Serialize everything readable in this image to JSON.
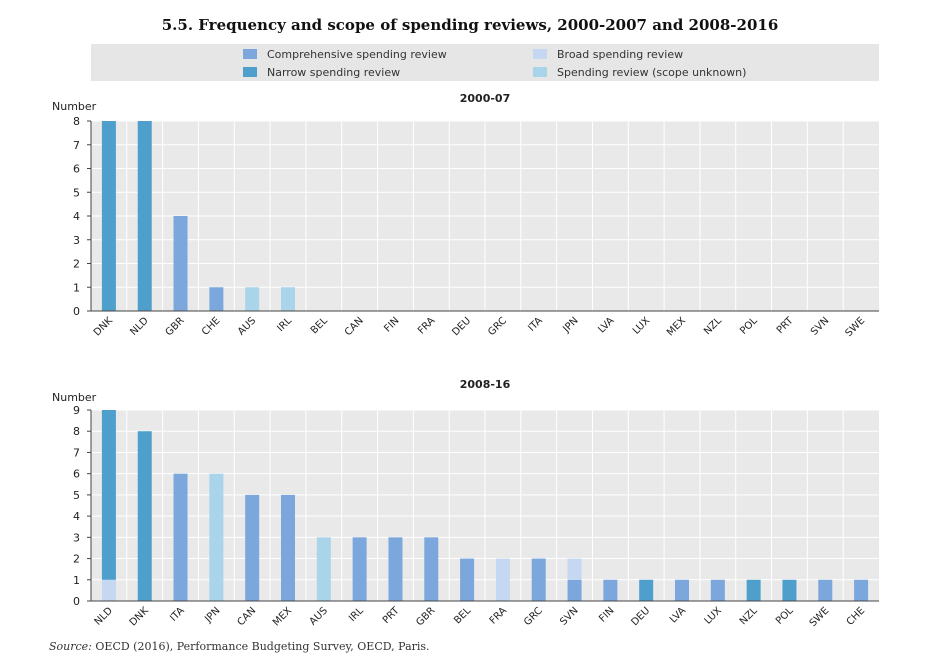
{
  "title": "5.5. Frequency and scope of spending reviews, 2000-2007 and 2008-2016",
  "source_label": "Source:",
  "source_text": "OECD (2016), Performance Budgeting Survey, OECD, Paris.",
  "colors": {
    "comprehensive": "#7ba7dc",
    "broad": "#c5d7f1",
    "narrow": "#4f9fcd",
    "unknown": "#a9d4ea"
  },
  "legend": [
    {
      "key": "comprehensive",
      "label": "Comprehensive spending review"
    },
    {
      "key": "broad",
      "label": "Broad spending review"
    },
    {
      "key": "narrow",
      "label": "Narrow spending review"
    },
    {
      "key": "unknown",
      "label": "Spending review (scope unknown)"
    }
  ],
  "chart_data": [
    {
      "type": "bar",
      "stacked": true,
      "title": "2000-07",
      "ylabel": "Number",
      "ylim": [
        0,
        8
      ],
      "yticks": [
        0,
        1,
        2,
        3,
        4,
        5,
        6,
        7,
        8
      ],
      "grid": true,
      "categories": [
        "DNK",
        "NLD",
        "GBR",
        "CHE",
        "AUS",
        "IRL",
        "BEL",
        "CAN",
        "FIN",
        "FRA",
        "DEU",
        "GRC",
        "ITA",
        "JPN",
        "LVA",
        "LUX",
        "MEX",
        "NZL",
        "POL",
        "PRT",
        "SVN",
        "SWE"
      ],
      "series": [
        {
          "key": "comprehensive",
          "name": "Comprehensive spending review",
          "values": [
            0,
            0,
            4,
            1,
            0,
            0,
            0,
            0,
            0,
            0,
            0,
            0,
            0,
            0,
            0,
            0,
            0,
            0,
            0,
            0,
            0,
            0
          ]
        },
        {
          "key": "broad",
          "name": "Broad spending review",
          "values": [
            0,
            0,
            0,
            0,
            0,
            0,
            0,
            0,
            0,
            0,
            0,
            0,
            0,
            0,
            0,
            0,
            0,
            0,
            0,
            0,
            0,
            0
          ]
        },
        {
          "key": "narrow",
          "name": "Narrow spending review",
          "values": [
            8,
            8,
            0,
            0,
            0,
            0,
            0,
            0,
            0,
            0,
            0,
            0,
            0,
            0,
            0,
            0,
            0,
            0,
            0,
            0,
            0,
            0
          ]
        },
        {
          "key": "unknown",
          "name": "Spending review (scope unknown)",
          "values": [
            0,
            0,
            0,
            0,
            1,
            1,
            0,
            0,
            0,
            0,
            0,
            0,
            0,
            0,
            0,
            0,
            0,
            0,
            0,
            0,
            0,
            0
          ]
        }
      ]
    },
    {
      "type": "bar",
      "stacked": true,
      "title": "2008-16",
      "ylabel": "Number",
      "ylim": [
        0,
        9
      ],
      "yticks": [
        0,
        1,
        2,
        3,
        4,
        5,
        6,
        7,
        8,
        9
      ],
      "grid": true,
      "categories": [
        "NLD",
        "DNK",
        "ITA",
        "JPN",
        "CAN",
        "MEX",
        "AUS",
        "IRL",
        "PRT",
        "GBR",
        "BEL",
        "FRA",
        "GRC",
        "SVN",
        "FIN",
        "DEU",
        "LVA",
        "LUX",
        "NZL",
        "POL",
        "SWE",
        "CHE"
      ],
      "series": [
        {
          "key": "comprehensive",
          "name": "Comprehensive spending review",
          "values": [
            0,
            0,
            6,
            0,
            5,
            5,
            0,
            3,
            3,
            3,
            2,
            0,
            2,
            1,
            1,
            0,
            1,
            1,
            0,
            0,
            1,
            1
          ]
        },
        {
          "key": "broad",
          "name": "Broad spending review",
          "values": [
            1,
            0,
            0,
            0,
            0,
            0,
            0,
            0,
            0,
            0,
            0,
            2,
            0,
            1,
            0,
            0,
            0,
            0,
            0,
            0,
            0,
            0
          ]
        },
        {
          "key": "narrow",
          "name": "Narrow spending review",
          "values": [
            8,
            8,
            0,
            0,
            0,
            0,
            0,
            0,
            0,
            0,
            0,
            0,
            0,
            0,
            0,
            1,
            0,
            0,
            1,
            1,
            0,
            0
          ]
        },
        {
          "key": "unknown",
          "name": "Spending review (scope unknown)",
          "values": [
            0,
            0,
            0,
            6,
            0,
            0,
            3,
            0,
            0,
            0,
            0,
            0,
            0,
            0,
            0,
            0,
            0,
            0,
            0,
            0,
            0,
            0
          ]
        }
      ]
    }
  ]
}
